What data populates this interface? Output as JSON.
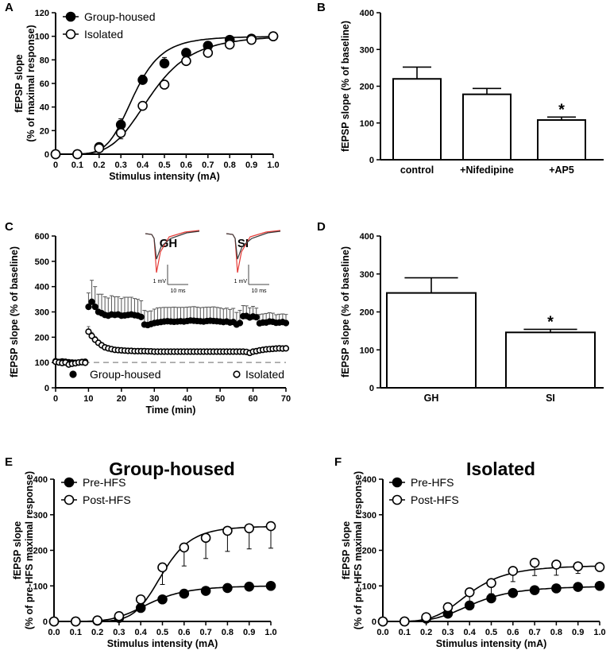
{
  "chart_data": [
    {
      "panel": "A",
      "type": "scatter-fit",
      "xlabel": "Stimulus intensity (mA)",
      "ylabel": "fEPSP slope",
      "ylabel2": "(% of maximal response)",
      "xlim": [
        0,
        1.0
      ],
      "ylim": [
        0,
        120
      ],
      "xticks": [
        "0",
        "0.1",
        "0.2",
        "0.3",
        "0.4",
        "0.5",
        "0.6",
        "0.7",
        "0.8",
        "0.9",
        "1.0"
      ],
      "yticks": [
        "0",
        "20",
        "40",
        "60",
        "80",
        "100",
        "120"
      ],
      "x": [
        0,
        0.1,
        0.2,
        0.3,
        0.4,
        0.5,
        0.6,
        0.7,
        0.8,
        0.9,
        1.0
      ],
      "series": [
        {
          "name": "Group-housed",
          "marker": "filled",
          "values": [
            0,
            0,
            6,
            25,
            63,
            77,
            86,
            92,
            97,
            98,
            100
          ],
          "errors": [
            0,
            0,
            2,
            5,
            4,
            5,
            3,
            2,
            2,
            1,
            1
          ],
          "fit": {
            "top": 100,
            "x50": 0.36,
            "hill": 5.6
          }
        },
        {
          "name": "Isolated",
          "marker": "open",
          "values": [
            0,
            0,
            5,
            18,
            41,
            59,
            79,
            86,
            93,
            97,
            100
          ],
          "errors": [
            0,
            0,
            2,
            5,
            3,
            3,
            3,
            2,
            2,
            1,
            1
          ],
          "fit": {
            "top": 101,
            "x50": 0.44,
            "hill": 4.6
          }
        }
      ]
    },
    {
      "panel": "B",
      "type": "bar",
      "ylabel": "fEPSP slope (% of baseline)",
      "ylim": [
        0,
        400
      ],
      "yticks": [
        "0",
        "100",
        "200",
        "300",
        "400"
      ],
      "categories": [
        "control",
        "+Nifedipine",
        "+AP5"
      ],
      "values": [
        220,
        178,
        108
      ],
      "errors": [
        32,
        16,
        8
      ],
      "significance": [
        "",
        "",
        "*"
      ]
    },
    {
      "panel": "C",
      "type": "scatter",
      "xlabel": "Time (min)",
      "ylabel": "fEPSP slope (% of baseline)",
      "xlim": [
        0,
        70
      ],
      "ylim": [
        0,
        600
      ],
      "xticks": [
        "0",
        "10",
        "20",
        "30",
        "40",
        "50",
        "60",
        "70"
      ],
      "yticks": [
        "0",
        "100",
        "200",
        "300",
        "400",
        "500",
        "600"
      ],
      "baseline": 100,
      "series": [
        {
          "name": "Group-housed",
          "marker": "filled",
          "values": [
            105,
            102,
            104,
            103,
            101,
            100,
            99,
            100,
            102,
            103,
            320,
            340,
            320,
            300,
            295,
            288,
            285,
            290,
            288,
            290,
            285,
            286,
            288,
            290,
            287,
            285,
            280,
            250,
            248,
            252,
            256,
            258,
            260,
            262,
            263,
            262,
            261,
            262,
            263,
            262,
            264,
            266,
            265,
            264,
            263,
            262,
            264,
            265,
            264,
            263,
            262,
            260,
            262,
            258,
            260,
            250,
            256,
            283,
            284,
            278,
            282,
            279,
            255,
            258,
            258,
            262,
            261,
            257,
            258,
            260,
            256
          ],
          "errors": [
            6,
            8,
            10,
            8,
            7,
            9,
            8,
            7,
            6,
            8,
            55,
            85,
            80,
            70,
            75,
            72,
            70,
            74,
            72,
            70,
            68,
            72,
            70,
            68,
            66,
            65,
            64,
            56,
            54,
            52,
            55,
            58,
            57,
            56,
            55,
            56,
            58,
            56,
            55,
            56,
            55,
            54,
            56,
            55,
            54,
            56,
            55,
            54,
            56,
            55,
            54,
            52,
            53,
            52,
            54,
            48,
            50,
            42,
            40,
            38,
            40,
            36,
            35,
            34,
            36,
            35,
            34,
            32,
            33,
            32,
            34
          ]
        },
        {
          "name": "Isolated",
          "marker": "open",
          "values": [
            103,
            100,
            98,
            100,
            92,
            95,
            97,
            100,
            101,
            99,
            222,
            205,
            190,
            178,
            168,
            160,
            156,
            153,
            150,
            149,
            148,
            147,
            146,
            146,
            145,
            145,
            145,
            145,
            144,
            144,
            143,
            143,
            143,
            143,
            143,
            143,
            143,
            143,
            143,
            143,
            143,
            143,
            143,
            143,
            143,
            143,
            143,
            143,
            143,
            143,
            143,
            143,
            143,
            143,
            143,
            143,
            143,
            143,
            142,
            138,
            143,
            145,
            148,
            150,
            152,
            153,
            154,
            155,
            156,
            155,
            156
          ],
          "errors": [
            6,
            5,
            6,
            5,
            5,
            6,
            5,
            5,
            6,
            5,
            20,
            14,
            12,
            10,
            9,
            8,
            7,
            7,
            6,
            6,
            6,
            5,
            5,
            5,
            5,
            5,
            5,
            5,
            5,
            5,
            5,
            5,
            5,
            5,
            5,
            5,
            5,
            5,
            5,
            5,
            5,
            5,
            5,
            5,
            5,
            5,
            5,
            5,
            5,
            5,
            5,
            5,
            5,
            5,
            5,
            5,
            5,
            5,
            5,
            5,
            5,
            5,
            5,
            5,
            5,
            5,
            5,
            5,
            5,
            5,
            5
          ]
        }
      ],
      "insets": [
        {
          "label": "GH",
          "scale_y": "1 mV",
          "scale_x": "10 ms"
        },
        {
          "label": "SI",
          "scale_y": "1 mV",
          "scale_x": "10 ms"
        }
      ]
    },
    {
      "panel": "D",
      "type": "bar",
      "ylabel": "fEPSP slope (% of baseline)",
      "ylim": [
        0,
        400
      ],
      "yticks": [
        "0",
        "100",
        "200",
        "300",
        "400"
      ],
      "categories": [
        "GH",
        "SI"
      ],
      "values": [
        250,
        146
      ],
      "errors": [
        40,
        8
      ],
      "significance": [
        "",
        "*"
      ]
    },
    {
      "panel": "E",
      "type": "scatter-fit",
      "title": "Group-housed",
      "xlabel": "Stimulus intensity (mA)",
      "ylabel": "fEPSP slope",
      "ylabel2": "(% of pre-HFS maximal response)",
      "xlim": [
        0,
        1.0
      ],
      "ylim": [
        0,
        400
      ],
      "xticks": [
        "0.0",
        "0.1",
        "0.2",
        "0.3",
        "0.4",
        "0.5",
        "0.6",
        "0.7",
        "0.8",
        "0.9",
        "1.0"
      ],
      "yticks": [
        "0",
        "100",
        "200",
        "300",
        "400"
      ],
      "x": [
        0,
        0.1,
        0.2,
        0.3,
        0.4,
        0.5,
        0.6,
        0.7,
        0.8,
        0.9,
        1.0
      ],
      "series": [
        {
          "name": "Pre-HFS",
          "marker": "filled",
          "values": [
            0,
            0,
            2,
            10,
            38,
            62,
            78,
            86,
            94,
            98,
            100
          ],
          "errors": [
            0,
            0,
            2,
            3,
            5,
            5,
            4,
            4,
            3,
            3,
            2
          ],
          "fit": {
            "top": 101,
            "x50": 0.44,
            "hill": 5.0
          }
        },
        {
          "name": "Post-HFS",
          "marker": "open",
          "values": [
            0,
            0,
            3,
            15,
            62,
            152,
            208,
            235,
            255,
            262,
            268
          ],
          "errors": [
            0,
            0,
            4,
            8,
            20,
            48,
            52,
            58,
            58,
            58,
            62
          ],
          "fit": {
            "top": 268,
            "x50": 0.5,
            "hill": 7.5
          }
        }
      ]
    },
    {
      "panel": "F",
      "type": "scatter-fit",
      "title": "Isolated",
      "xlabel": "Stimulus intensity (mA)",
      "ylabel": "fEPSP slope",
      "ylabel2": "(% of pre-HFS maximal response)",
      "xlim": [
        0,
        1.0
      ],
      "ylim": [
        0,
        400
      ],
      "xticks": [
        "0.0",
        "0.1",
        "0.2",
        "0.3",
        "0.4",
        "0.5",
        "0.6",
        "0.7",
        "0.8",
        "0.9",
        "1.0"
      ],
      "yticks": [
        "0",
        "100",
        "200",
        "300",
        "400"
      ],
      "x": [
        0,
        0.1,
        0.2,
        0.3,
        0.4,
        0.5,
        0.6,
        0.7,
        0.8,
        0.9,
        1.0
      ],
      "series": [
        {
          "name": "Pre-HFS",
          "marker": "filled",
          "values": [
            0,
            0,
            8,
            22,
            45,
            65,
            80,
            88,
            93,
            97,
            100
          ],
          "errors": [
            0,
            0,
            3,
            6,
            8,
            8,
            6,
            5,
            4,
            3,
            2
          ],
          "fit": {
            "top": 100,
            "x50": 0.42,
            "hill": 4.2
          }
        },
        {
          "name": "Post-HFS",
          "marker": "open",
          "values": [
            0,
            0,
            12,
            40,
            82,
            108,
            142,
            165,
            160,
            155,
            153
          ],
          "errors": [
            0,
            0,
            6,
            28,
            35,
            30,
            30,
            36,
            30,
            20,
            12
          ],
          "fit": {
            "top": 158,
            "x50": 0.4,
            "hill": 4.5
          }
        }
      ]
    }
  ]
}
